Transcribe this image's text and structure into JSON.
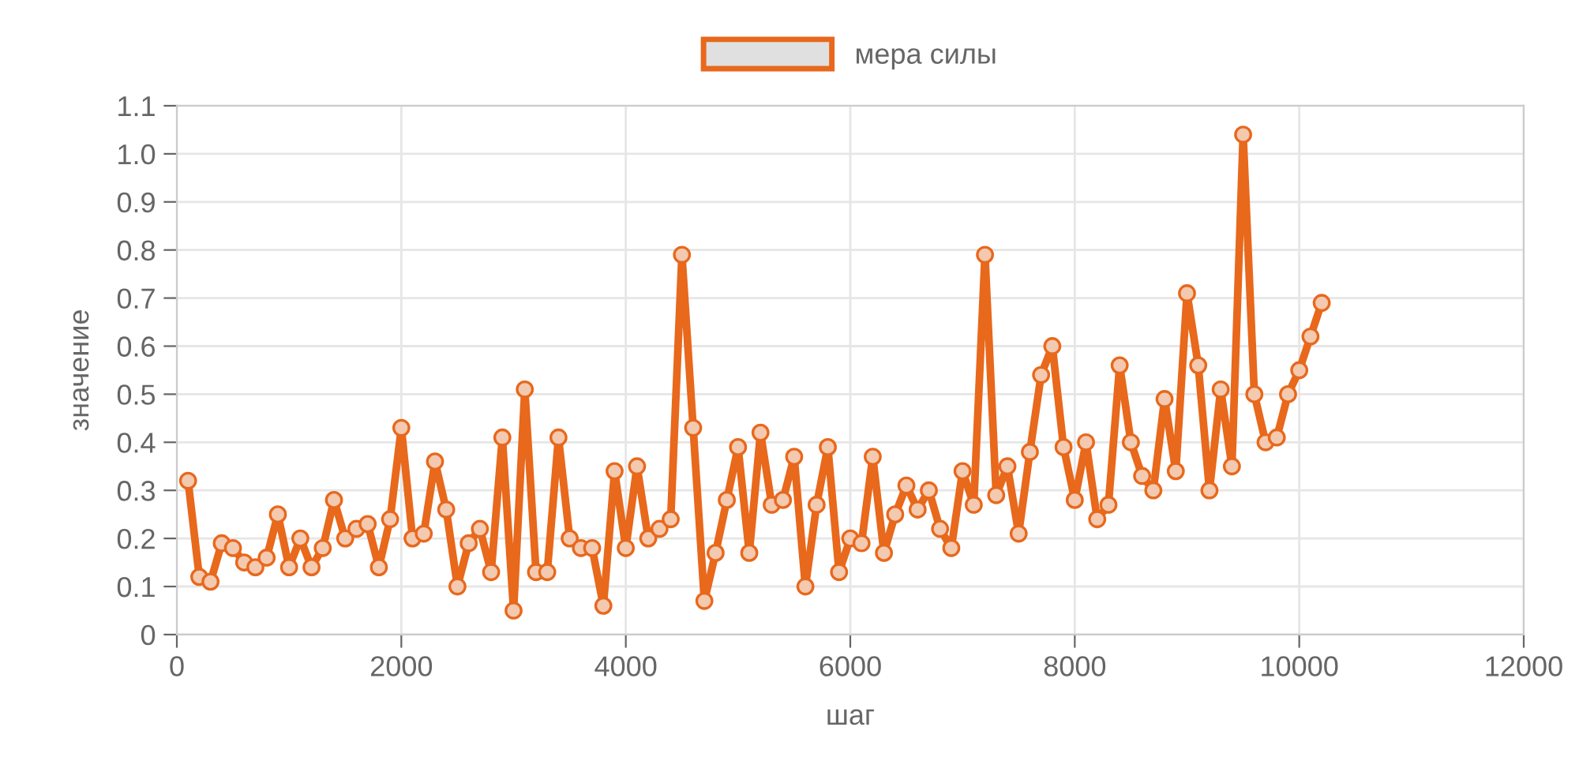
{
  "chart_data": {
    "type": "line",
    "xlabel": "шаг",
    "ylabel": "значение",
    "x": [
      100,
      200,
      300,
      400,
      500,
      600,
      700,
      800,
      900,
      1000,
      1100,
      1200,
      1300,
      1400,
      1500,
      1600,
      1700,
      1800,
      1900,
      2000,
      2100,
      2200,
      2300,
      2400,
      2500,
      2600,
      2700,
      2800,
      2900,
      3000,
      3100,
      3200,
      3300,
      3400,
      3500,
      3600,
      3700,
      3800,
      3900,
      4000,
      4100,
      4200,
      4300,
      4400,
      4500,
      4600,
      4700,
      4800,
      4900,
      5000,
      5100,
      5200,
      5300,
      5400,
      5500,
      5600,
      5700,
      5800,
      5900,
      6000,
      6100,
      6200,
      6300,
      6400,
      6500,
      6600,
      6700,
      6800,
      6900,
      7000,
      7100,
      7200,
      7300,
      7400,
      7500,
      7600,
      7700,
      7800,
      7900,
      8000,
      8100,
      8200,
      8300,
      8400,
      8500,
      8600,
      8700,
      8800,
      8900,
      9000,
      9100,
      9200,
      9300,
      9400,
      9500,
      9600,
      9700,
      9800,
      9900,
      10000,
      10100,
      10200
    ],
    "series": [
      {
        "name": "мера силы",
        "color": "#e8681c",
        "values": [
          0.32,
          0.12,
          0.11,
          0.19,
          0.18,
          0.15,
          0.14,
          0.16,
          0.25,
          0.14,
          0.2,
          0.14,
          0.18,
          0.28,
          0.2,
          0.22,
          0.23,
          0.14,
          0.24,
          0.43,
          0.2,
          0.21,
          0.36,
          0.26,
          0.1,
          0.19,
          0.22,
          0.13,
          0.41,
          0.05,
          0.51,
          0.13,
          0.13,
          0.41,
          0.2,
          0.18,
          0.18,
          0.06,
          0.34,
          0.18,
          0.35,
          0.2,
          0.22,
          0.24,
          0.79,
          0.43,
          0.07,
          0.17,
          0.28,
          0.39,
          0.17,
          0.42,
          0.27,
          0.28,
          0.37,
          0.1,
          0.27,
          0.39,
          0.13,
          0.2,
          0.19,
          0.37,
          0.17,
          0.25,
          0.31,
          0.26,
          0.3,
          0.22,
          0.18,
          0.34,
          0.27,
          0.79,
          0.29,
          0.35,
          0.21,
          0.38,
          0.54,
          0.6,
          0.39,
          0.28,
          0.4,
          0.24,
          0.27,
          0.56,
          0.4,
          0.33,
          0.3,
          0.49,
          0.34,
          0.71,
          0.56,
          0.3,
          0.51,
          0.35,
          1.04,
          0.5,
          0.4,
          0.41,
          0.5,
          0.55,
          0.62,
          0.69
        ]
      }
    ],
    "xlim": [
      0,
      12000
    ],
    "xticks": [
      0,
      2000,
      4000,
      6000,
      8000,
      10000,
      12000
    ],
    "ylim": [
      0,
      1.1
    ],
    "yticks": [
      0,
      0.1,
      0.2,
      0.3,
      0.4,
      0.5,
      0.6,
      0.7,
      0.8,
      0.9,
      {
        "value": 1,
        "label": "1.0"
      },
      1.1
    ],
    "grid": true,
    "legend": "top",
    "marker": "circle",
    "line_style": "solid"
  }
}
